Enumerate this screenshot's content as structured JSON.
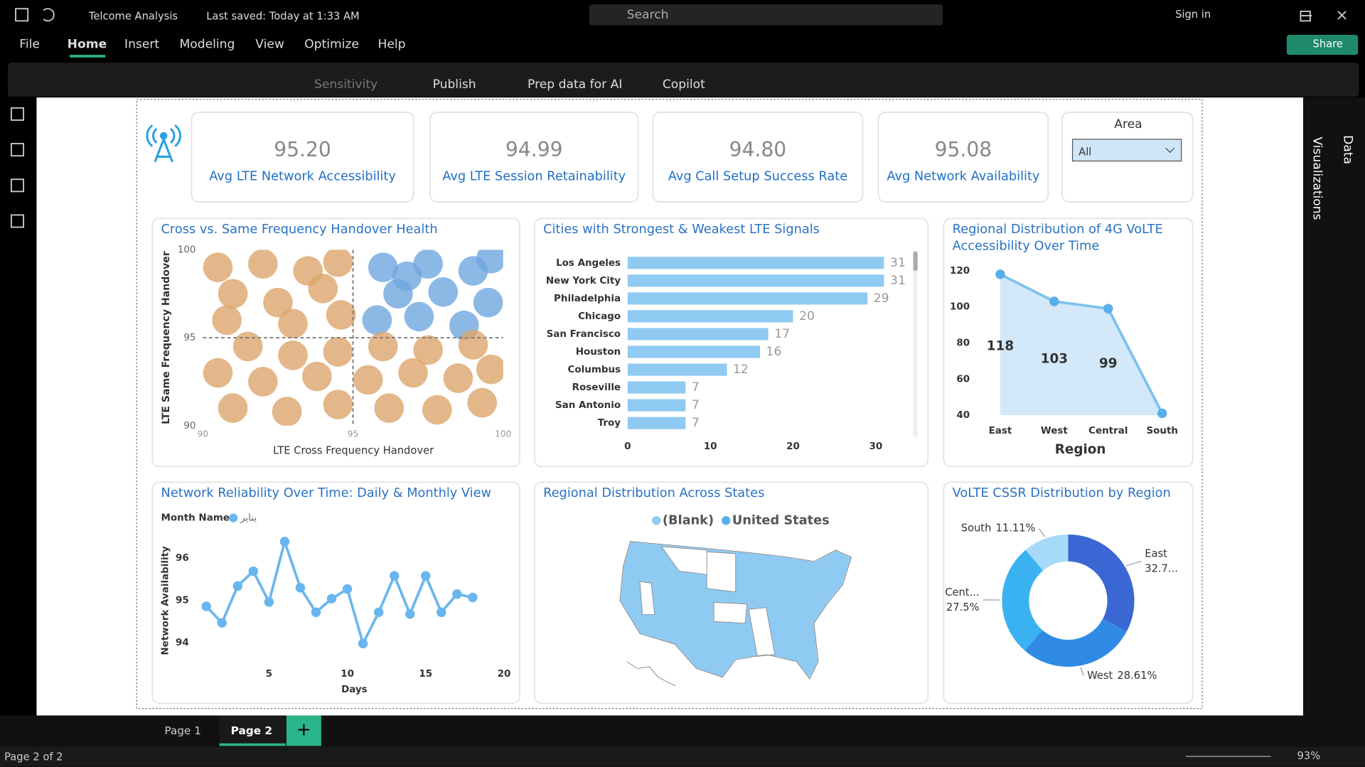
{
  "titlebar": {
    "file_name": "Telcome Analysis",
    "saved": "Last saved: Today at 1:33 AM",
    "search": "Search",
    "sign_in": "Sign in"
  },
  "menu": [
    "File",
    "Home",
    "Insert",
    "Modeling",
    "View",
    "Optimize",
    "Help"
  ],
  "share": "Share",
  "toolbar": [
    "Sensitivity",
    "Publish",
    "Prep data for AI",
    "Copilot"
  ],
  "cards": [
    {
      "value": "95.20",
      "label": "Avg LTE Network Accessibility"
    },
    {
      "value": "94.99",
      "label": "Avg LTE Session Retainability"
    },
    {
      "value": "94.80",
      "label": "Avg Call Setup Success Rate"
    },
    {
      "value": "95.08",
      "label": "Avg Network Availability"
    }
  ],
  "slicer": {
    "title": "Area",
    "value": "All"
  },
  "charts": [
    {
      "type": "scatter",
      "title": "Cross vs. Same Frequency Handover Health",
      "xlabel": "LTE Cross Frequency Handover",
      "ylabel": "LTE Same Frequency Handover",
      "xlim": [
        90,
        100
      ],
      "ylim": [
        90,
        100
      ],
      "xticks": [
        90,
        95,
        100
      ],
      "yticks": [
        90,
        95,
        100
      ],
      "reference_x": 95,
      "reference_y": 95,
      "series": [
        {
          "color": "#6fa6de",
          "x": [
            96,
            97.5,
            99,
            96.5,
            98,
            99.5,
            95.8,
            97.2,
            98.7,
            99.6,
            96.8
          ],
          "y": [
            99,
            99.2,
            98.8,
            97.5,
            97.6,
            97,
            96,
            96.2,
            95.7,
            99.5,
            98.5
          ]
        },
        {
          "color": "#dca56c",
          "x": [
            90.5,
            92,
            93.5,
            94.5,
            91,
            92.5,
            94,
            90.8,
            93,
            94.6,
            91.5,
            93,
            94.5,
            96,
            97.5,
            99,
            90.5,
            92,
            93.8,
            95.5,
            97,
            98.5,
            99.6,
            91,
            92.8,
            94.5,
            96.2,
            97.8,
            99.3
          ],
          "y": [
            99,
            99.2,
            98.8,
            99.3,
            97.5,
            97,
            97.8,
            96,
            95.8,
            96.3,
            94.5,
            94,
            94.2,
            94.5,
            94.3,
            94.6,
            93,
            92.5,
            92.8,
            92.6,
            93,
            92.7,
            93.2,
            91,
            90.8,
            91.2,
            91,
            90.9,
            91.3
          ]
        }
      ]
    },
    {
      "type": "hbar",
      "title": "Cities with Strongest & Weakest LTE Signals",
      "categories": [
        "Los Angeles",
        "New York City",
        "Philadelphia",
        "Chicago",
        "San Francisco",
        "Houston",
        "Columbus",
        "Roseville",
        "San Antonio",
        "Troy"
      ],
      "values": [
        31,
        31,
        29,
        20,
        17,
        16,
        12,
        7,
        7,
        7
      ],
      "color": "#8fcaf2",
      "xlim": [
        0,
        32
      ],
      "xticks": [
        0,
        10,
        20,
        30
      ]
    },
    {
      "type": "area",
      "title": "Regional Distribution of 4G VoLTE Accessibility Over Time",
      "xlabel": "Region",
      "categories": [
        "East",
        "West",
        "Central",
        "South"
      ],
      "values": [
        118,
        103,
        99,
        41
      ],
      "value_labels": [
        "118",
        "103",
        "99",
        null
      ],
      "color": "#7cc0ee",
      "ylim": [
        40,
        120
      ],
      "yticks": [
        40,
        60,
        80,
        100,
        120
      ]
    },
    {
      "type": "line",
      "title": "Network Reliability Over Time: Daily & Monthly View",
      "legend_title": "Month Name",
      "xlabel": "Days",
      "ylabel": "Network Availability",
      "xlim": [
        0,
        20
      ],
      "ylim": [
        93.7,
        96.6
      ],
      "xticks": [
        5,
        10,
        15,
        20
      ],
      "yticks": [
        94,
        95,
        96
      ],
      "series": [
        {
          "name": "يناير",
          "color": "#69b6ee",
          "x": [
            1,
            2,
            3,
            4,
            5,
            6,
            7,
            8,
            9,
            10,
            11,
            12,
            13,
            14,
            15,
            16,
            17,
            18
          ],
          "values": [
            94.86,
            94.47,
            95.34,
            95.69,
            94.96,
            96.39,
            95.3,
            94.72,
            95.04,
            95.27,
            93.98,
            94.72,
            95.58,
            94.68,
            95.58,
            94.72,
            95.15,
            95.07
          ]
        }
      ]
    },
    {
      "type": "map",
      "title": "Regional Distribution Across States",
      "series": [
        {
          "name": "(Blank)",
          "color": "#8fcaf2"
        },
        {
          "name": "United States",
          "color": "#5aaeea"
        }
      ]
    },
    {
      "type": "donut",
      "title": "VoLTE CSSR Distribution by Region",
      "categories": [
        "East",
        "West",
        "Cent...",
        "South"
      ],
      "values": [
        32.78,
        28.61,
        27.5,
        11.11
      ],
      "value_labels": [
        "32.7...",
        "28.61%",
        "27.5%",
        "11.11%"
      ],
      "colors": [
        "#3a67d4",
        "#2f8ae6",
        "#3ab2f2",
        "#a6daf8"
      ]
    }
  ],
  "pane": {
    "visualizations": "Visualizations",
    "data": "Data"
  },
  "pages": [
    "Page 1",
    "Page 2"
  ],
  "status": {
    "page": "Page 2 of 2",
    "zoom": "93%"
  }
}
